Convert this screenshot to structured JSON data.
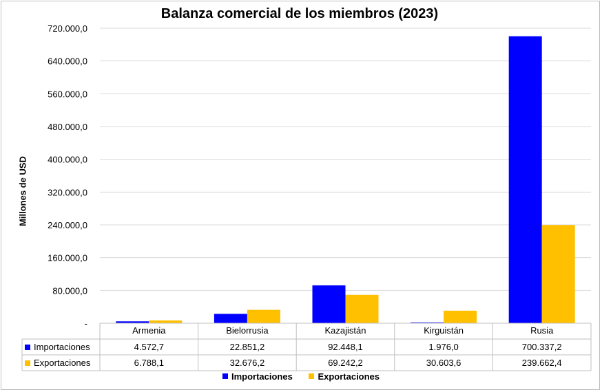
{
  "chart_data": {
    "type": "bar",
    "title": "Balanza comercial de los miembros (2023)",
    "ylabel": "Millones de USD",
    "xlabel": "",
    "categories": [
      "Armenia",
      "Bielorrusia",
      "Kazajistán",
      "Kirguistán",
      "Rusia"
    ],
    "series": [
      {
        "name": "Importaciones",
        "color": "#0000ff",
        "values": [
          4572.7,
          22851.2,
          92448.1,
          1976.0,
          700337.2
        ],
        "labels": [
          "4.572,7",
          "22.851,2",
          "92.448,1",
          "1.976,0",
          "700.337,2"
        ]
      },
      {
        "name": "Exportaciones",
        "color": "#ffc000",
        "values": [
          6788.1,
          32676.2,
          69242.2,
          30603.6,
          239662.4
        ],
        "labels": [
          "6.788,1",
          "32.676,2",
          "69.242,2",
          "30.603,6",
          "239.662,4"
        ]
      }
    ],
    "ylim": [
      0,
      720000
    ],
    "yticks": [
      0,
      80000,
      160000,
      240000,
      320000,
      400000,
      480000,
      560000,
      640000,
      720000
    ],
    "ytick_labels": [
      "-",
      "80.000,0",
      "160.000,0",
      "240.000,0",
      "320.000,0",
      "400.000,0",
      "480.000,0",
      "560.000,0",
      "640.000,0",
      "720.000,0"
    ],
    "grid": true,
    "legend_position": "bottom",
    "data_table": true
  }
}
